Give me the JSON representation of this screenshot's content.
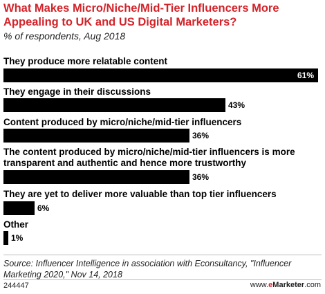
{
  "chart_data": {
    "type": "bar",
    "orientation": "horizontal",
    "title": "What Makes Micro/Niche/Mid-Tier Influencers More Appealing to UK and US Digital Marketers?",
    "subtitle": "% of respondents, Aug 2018",
    "categories": [
      "They produce more relatable content",
      "They engage in their discussions",
      "Content produced by micro/niche/mid-tier influencers",
      "The content produced by micro/niche/mid-tier influencers is more transparent and authentic and hence more trustworthy",
      "They are yet to deliver more valuable than top tier influencers",
      "Other"
    ],
    "values": [
      61,
      43,
      36,
      36,
      6,
      1
    ],
    "value_labels": [
      "61%",
      "43%",
      "36%",
      "36%",
      "6%",
      "1%"
    ],
    "xlim": [
      0,
      61
    ],
    "bar_color": "#000000"
  },
  "source": "Source: Influencer Intelligence in association with Econsultancy, \"Influencer Marketing 2020,\" Nov 14, 2018",
  "chart_id": "244447",
  "brand": {
    "prefix": "www.",
    "e": "e",
    "name": "Marketer",
    "suffix": ".com"
  },
  "colors": {
    "title": "#d2242a",
    "brand_accent": "#d2242a"
  }
}
